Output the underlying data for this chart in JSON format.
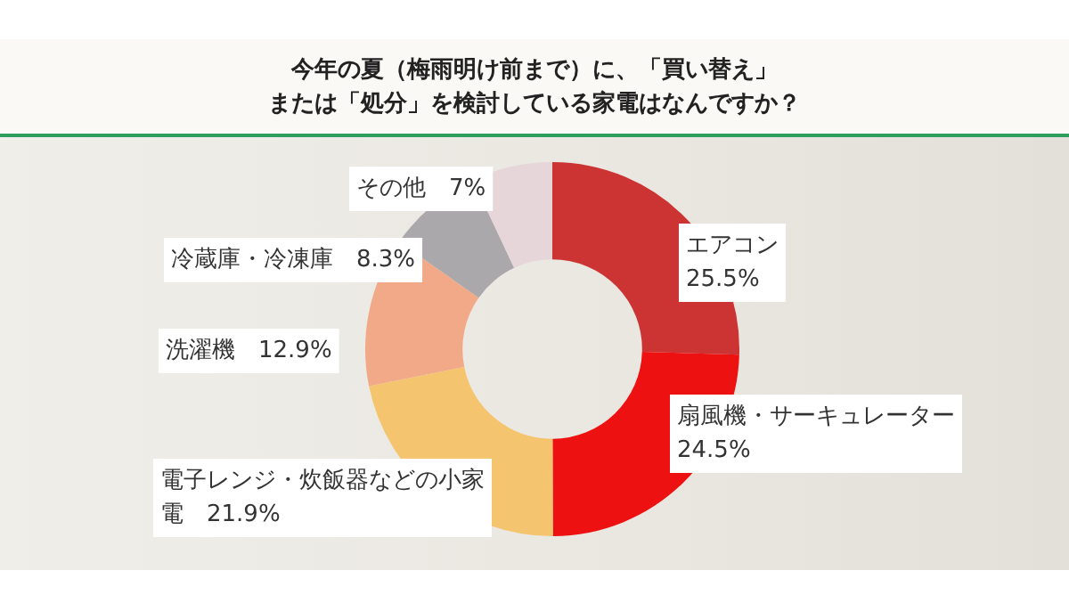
{
  "chart_data": {
    "type": "donut",
    "title": "今年の夏（梅雨明け前まで）に、「買い替え」",
    "subtitle": "または「処分」を検討している家電はなんですか？",
    "categories": [
      "エアコン",
      "扇風機・サーキュレーター",
      "電子レンジ・炊飯器などの小家電",
      "洗濯機",
      "冷蔵庫・冷凍庫",
      "その他"
    ],
    "values": [
      25.5,
      24.5,
      21.9,
      12.9,
      8.3,
      7
    ],
    "value_labels": [
      "25.5%",
      "24.5%",
      "21.9%",
      "12.9%",
      "8.3%",
      "7%"
    ],
    "colors": [
      "#cc3333",
      "#ee1111",
      "#f5c46e",
      "#f2a988",
      "#aaa8aa",
      "#e6d6da"
    ],
    "legend": false
  }
}
